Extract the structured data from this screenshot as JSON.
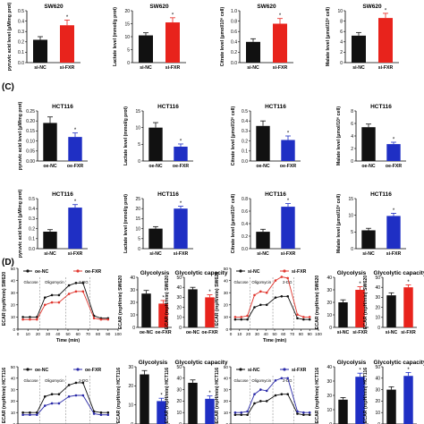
{
  "figure": {
    "panel_labels": [
      "(C)",
      "(D)"
    ]
  },
  "colors": {
    "nc": "#111111",
    "treated_red": "#e8231c",
    "treated_blue": "#1f2fc4",
    "red_line": "#e0362e",
    "blue_line": "#2a2aa8"
  },
  "chart_data": [
    {
      "id": "sw-pyr",
      "type": "bar",
      "title": "SW620",
      "ylabel": "pyruvic acid level (μM/mg prot)",
      "categories": [
        "si-NC",
        "si-FXR"
      ],
      "values": [
        0.22,
        0.36
      ],
      "errors": [
        0.03,
        0.05
      ],
      "ylim": [
        0,
        0.5
      ],
      "yticks": [
        "0.0",
        "0.1",
        "0.2",
        "0.3",
        "0.4",
        "0.5"
      ],
      "colors": [
        "#111111",
        "#e8231c"
      ],
      "sig": "*"
    },
    {
      "id": "sw-lac",
      "type": "bar",
      "title": "SW620",
      "ylabel": "Lactate level (mmol/g prot)",
      "categories": [
        "si-NC",
        "si-FXR"
      ],
      "values": [
        10.5,
        15.5
      ],
      "errors": [
        1,
        1.8
      ],
      "ylim": [
        0,
        20
      ],
      "yticks": [
        "0",
        "5",
        "10",
        "15",
        "20"
      ],
      "colors": [
        "#111111",
        "#e8231c"
      ],
      "sig": "*"
    },
    {
      "id": "sw-cit",
      "type": "bar",
      "title": "SW620",
      "ylabel": "Citrate level (μmol/10⁶ cell)",
      "categories": [
        "si-NC",
        "si-FXR"
      ],
      "values": [
        0.4,
        0.75
      ],
      "errors": [
        0.06,
        0.1
      ],
      "ylim": [
        0,
        1.0
      ],
      "yticks": [
        "0.0",
        "0.2",
        "0.4",
        "0.6",
        "0.8",
        "1.0"
      ],
      "colors": [
        "#111111",
        "#e8231c"
      ],
      "sig": "*"
    },
    {
      "id": "sw-mal",
      "type": "bar",
      "title": "SW620",
      "ylabel": "Malate level (μmol/10⁶ cell)",
      "categories": [
        "si-NC",
        "si-FXR"
      ],
      "values": [
        5.2,
        8.6
      ],
      "errors": [
        0.6,
        0.9
      ],
      "ylim": [
        0,
        10
      ],
      "yticks": [
        "0",
        "2",
        "4",
        "6",
        "8",
        "10"
      ],
      "colors": [
        "#111111",
        "#e8231c"
      ],
      "sig": "*"
    },
    {
      "id": "oe-pyr",
      "type": "bar",
      "title": "HCT116",
      "ylabel": "pyruvic acid level (μM/mg prot)",
      "categories": [
        "oe-NC",
        "oe-FXR"
      ],
      "values": [
        0.19,
        0.12
      ],
      "errors": [
        0.03,
        0.02
      ],
      "ylim": [
        0,
        0.25
      ],
      "yticks": [
        "0.00",
        "0.05",
        "0.10",
        "0.15",
        "0.20",
        "0.25"
      ],
      "colors": [
        "#111111",
        "#1f2fc4"
      ],
      "sig": "*"
    },
    {
      "id": "oe-lac",
      "type": "bar",
      "title": "HCT116",
      "ylabel": "Lactate level (mmol/g prot)",
      "categories": [
        "oe-NC",
        "oe-FXR"
      ],
      "values": [
        10,
        4.3
      ],
      "errors": [
        1.5,
        0.8
      ],
      "ylim": [
        0,
        15
      ],
      "yticks": [
        "0",
        "5",
        "10",
        "15"
      ],
      "colors": [
        "#111111",
        "#1f2fc4"
      ],
      "sig": "*"
    },
    {
      "id": "oe-cit",
      "type": "bar",
      "title": "HCT116",
      "ylabel": "Citrate level (μmol/10⁶ cell)",
      "categories": [
        "oe-NC",
        "oe-FXR"
      ],
      "values": [
        0.35,
        0.21
      ],
      "errors": [
        0.05,
        0.04
      ],
      "ylim": [
        0,
        0.5
      ],
      "yticks": [
        "0.0",
        "0.1",
        "0.2",
        "0.3",
        "0.4",
        "0.5"
      ],
      "colors": [
        "#111111",
        "#1f2fc4"
      ],
      "sig": "*"
    },
    {
      "id": "oe-mal",
      "type": "bar",
      "title": "HCT116",
      "ylabel": "Malate level (μmol/10⁶ cell)",
      "categories": [
        "oe-NC",
        "oe-FXR"
      ],
      "values": [
        5.4,
        2.7
      ],
      "errors": [
        0.5,
        0.3
      ],
      "ylim": [
        0,
        8
      ],
      "yticks": [
        "0",
        "2",
        "4",
        "6",
        "8"
      ],
      "colors": [
        "#111111",
        "#1f2fc4"
      ],
      "sig": "*"
    },
    {
      "id": "si-pyr",
      "type": "bar",
      "title": "HCT116",
      "ylabel": "pyruvic acid level (μM/mg prot)",
      "categories": [
        "si-NC",
        "si-FXR"
      ],
      "values": [
        0.17,
        0.41
      ],
      "errors": [
        0.02,
        0.03
      ],
      "ylim": [
        0,
        0.5
      ],
      "yticks": [
        "0.0",
        "0.1",
        "0.2",
        "0.3",
        "0.4",
        "0.5"
      ],
      "colors": [
        "#111111",
        "#1f2fc4"
      ],
      "sig": "*"
    },
    {
      "id": "si-lac",
      "type": "bar",
      "title": "HCT116",
      "ylabel": "Lactate level (mmol/g prot)",
      "categories": [
        "si-NC",
        "si-FXR"
      ],
      "values": [
        10,
        20
      ],
      "errors": [
        1,
        1.2
      ],
      "ylim": [
        0,
        25
      ],
      "yticks": [
        "0",
        "5",
        "10",
        "15",
        "20",
        "25"
      ],
      "colors": [
        "#111111",
        "#1f2fc4"
      ],
      "sig": "*"
    },
    {
      "id": "si-cit",
      "type": "bar",
      "title": "HCT116",
      "ylabel": "Citrate level (μmol/10⁶ cell)",
      "categories": [
        "si-NC",
        "si-FXR"
      ],
      "values": [
        0.27,
        0.67
      ],
      "errors": [
        0.04,
        0.05
      ],
      "ylim": [
        0,
        0.8
      ],
      "yticks": [
        "0.0",
        "0.2",
        "0.4",
        "0.6",
        "0.8"
      ],
      "colors": [
        "#111111",
        "#1f2fc4"
      ],
      "sig": "*"
    },
    {
      "id": "si-mal",
      "type": "bar",
      "title": "HCT116",
      "ylabel": "Malate level (μmol/10⁶ cell)",
      "categories": [
        "si-NC",
        "si-FXR"
      ],
      "values": [
        5.5,
        9.8
      ],
      "errors": [
        0.6,
        0.8
      ],
      "ylim": [
        0,
        15
      ],
      "yticks": [
        "0",
        "5",
        "10",
        "15"
      ],
      "colors": [
        "#111111",
        "#1f2fc4"
      ],
      "sig": "*"
    },
    {
      "id": "d1-ecar",
      "type": "line",
      "title": "",
      "ylabel": "ECAR (mpH/min) SW620",
      "xlabel": "Time (min)",
      "xlim": [
        0,
        100
      ],
      "ylim": [
        0,
        50
      ],
      "xticks": [
        "0",
        "10",
        "20",
        "30",
        "40",
        "50",
        "60",
        "70",
        "80",
        "90",
        "100"
      ],
      "yticks": [
        "0",
        "10",
        "20",
        "30",
        "40",
        "50"
      ],
      "injections": {
        "labels": [
          "Glucose",
          "Oligomycin",
          "2-DG"
        ],
        "x": [
          22,
          48,
          72
        ]
      },
      "x": [
        5,
        12,
        19,
        27,
        34,
        41,
        51,
        58,
        65,
        76,
        83,
        90
      ],
      "series": [
        {
          "name": "oe-NC",
          "color": "#111111",
          "marker": "circle",
          "values": [
            10,
            10,
            10,
            26,
            28,
            28,
            36,
            38,
            38,
            11,
            9,
            9
          ]
        },
        {
          "name": "oe-FXR",
          "color": "#e0362e",
          "marker": "circle",
          "values": [
            8,
            8,
            8,
            20,
            22,
            22,
            29,
            31,
            31,
            9,
            8,
            8
          ]
        }
      ]
    },
    {
      "id": "d1-glyco",
      "type": "bar",
      "title": "Glycolysis",
      "ylabel": "ECAR (mpH/min) SW620",
      "categories": [
        "oe-NC",
        "oe-FXR"
      ],
      "values": [
        27,
        19
      ],
      "errors": [
        2.5,
        2.5
      ],
      "ylim": [
        0,
        40
      ],
      "yticks": [
        "0",
        "10",
        "20",
        "30",
        "40"
      ],
      "colors": [
        "#111111",
        "#e8231c"
      ],
      "sig": "*"
    },
    {
      "id": "d1-cap",
      "type": "bar",
      "title": "Glycolytic capacity",
      "ylabel": "ECAR (mpH/min) SW620",
      "categories": [
        "oe-NC",
        "oe-FXR"
      ],
      "values": [
        38,
        30
      ],
      "errors": [
        2,
        2.5
      ],
      "ylim": [
        0,
        50
      ],
      "yticks": [
        "0",
        "10",
        "20",
        "30",
        "40",
        "50"
      ],
      "colors": [
        "#111111",
        "#e8231c"
      ],
      "sig": "*"
    },
    {
      "id": "d2-ecar",
      "type": "line",
      "title": "",
      "ylabel": "ECAR (mpH/min) SW620",
      "xlabel": "Time (min)",
      "xlim": [
        0,
        100
      ],
      "ylim": [
        0,
        50
      ],
      "xticks": [
        "0",
        "10",
        "20",
        "30",
        "40",
        "50",
        "60",
        "70",
        "80",
        "90",
        "100"
      ],
      "yticks": [
        "0",
        "10",
        "20",
        "30",
        "40",
        "50"
      ],
      "injections": {
        "labels": [
          "Glucose",
          "Oligomycin",
          "2-DG"
        ],
        "x": [
          22,
          48,
          72
        ]
      },
      "x": [
        5,
        12,
        19,
        27,
        34,
        41,
        51,
        58,
        65,
        76,
        83,
        90
      ],
      "series": [
        {
          "name": "si-NC",
          "color": "#111111",
          "marker": "circle",
          "values": [
            8,
            8,
            8,
            18,
            20,
            20,
            26,
            27,
            27,
            9,
            8,
            8
          ]
        },
        {
          "name": "si-FXR",
          "color": "#e0362e",
          "marker": "circle",
          "values": [
            10,
            10,
            11,
            28,
            31,
            30,
            40,
            43,
            42,
            12,
            10,
            10
          ]
        }
      ]
    },
    {
      "id": "d2-glyco",
      "type": "bar",
      "title": "Glycolysis",
      "ylabel": "ECAR (mpH/min) SW620",
      "categories": [
        "si-NC",
        "si-FXR"
      ],
      "values": [
        20,
        30
      ],
      "errors": [
        2,
        2.5
      ],
      "ylim": [
        0,
        40
      ],
      "yticks": [
        "0",
        "10",
        "20",
        "30",
        "40"
      ],
      "colors": [
        "#111111",
        "#e8231c"
      ],
      "sig": "*"
    },
    {
      "id": "d2-cap",
      "type": "bar",
      "title": "Glycolytic capacity",
      "ylabel": "ECAR (mpH/min) SW620",
      "categories": [
        "si-NC",
        "si-FXR"
      ],
      "values": [
        32,
        40
      ],
      "errors": [
        2.5,
        2.5
      ],
      "ylim": [
        0,
        50
      ],
      "yticks": [
        "0",
        "10",
        "20",
        "30",
        "40",
        "50"
      ],
      "colors": [
        "#111111",
        "#e8231c"
      ],
      "sig": "*"
    },
    {
      "id": "d3-ecar",
      "type": "line",
      "title": "",
      "ylabel": "ECAR (mpH/min) HCT116",
      "xlabel": "",
      "xlim": [
        0,
        100
      ],
      "ylim": [
        0,
        50
      ],
      "xticks": [],
      "yticks": [
        "0",
        "10",
        "20",
        "30",
        "40",
        "50"
      ],
      "injections": {
        "labels": [
          "Glucose",
          "Oligomycin",
          "2-DG"
        ],
        "x": [
          22,
          48,
          72
        ]
      },
      "x": [
        5,
        12,
        19,
        27,
        34,
        41,
        51,
        58,
        65,
        76,
        83,
        90
      ],
      "series": [
        {
          "name": "oe-NC",
          "color": "#111111",
          "marker": "circle",
          "values": [
            10,
            10,
            10,
            24,
            26,
            26,
            34,
            36,
            36,
            11,
            10,
            10
          ]
        },
        {
          "name": "oe-FXR",
          "color": "#2a2aa8",
          "marker": "circle",
          "values": [
            8,
            8,
            8,
            16,
            18,
            18,
            24,
            25,
            25,
            9,
            8,
            8
          ]
        }
      ]
    },
    {
      "id": "d3-glyco",
      "type": "bar",
      "title": "Glycolysis",
      "ylabel": "ECAR (mpH/min) HCT116",
      "categories": [
        "oe-NC",
        "oe-FXR"
      ],
      "values": [
        26,
        12
      ],
      "errors": [
        2,
        1.5
      ],
      "ylim": [
        0,
        30
      ],
      "yticks": [
        "0",
        "10",
        "20",
        "30"
      ],
      "colors": [
        "#111111",
        "#1f2fc4"
      ],
      "sig": "*"
    },
    {
      "id": "d3-cap",
      "type": "bar",
      "title": "Glycolytic capacity",
      "ylabel": "ECAR (mpH/min) HCT116",
      "categories": [
        "oe-NC",
        "oe-FXR"
      ],
      "values": [
        36,
        22
      ],
      "errors": [
        2.5,
        2.5
      ],
      "ylim": [
        0,
        50
      ],
      "yticks": [
        "0",
        "10",
        "20",
        "30",
        "40",
        "50"
      ],
      "colors": [
        "#111111",
        "#1f2fc4"
      ],
      "sig": "*"
    },
    {
      "id": "d4-ecar",
      "type": "line",
      "title": "",
      "ylabel": "ECAR (mpH/min) HCT116",
      "xlabel": "",
      "xlim": [
        0,
        100
      ],
      "ylim": [
        0,
        50
      ],
      "xticks": [],
      "yticks": [
        "0",
        "10",
        "20",
        "30",
        "40",
        "50"
      ],
      "injections": {
        "labels": [
          "Glucose",
          "Oligomycin",
          "2-DG"
        ],
        "x": [
          22,
          48,
          72
        ]
      },
      "x": [
        5,
        12,
        19,
        27,
        34,
        41,
        51,
        58,
        65,
        76,
        83,
        90
      ],
      "series": [
        {
          "name": "si-NC",
          "color": "#111111",
          "marker": "circle",
          "values": [
            8,
            8,
            8,
            18,
            20,
            20,
            25,
            26,
            26,
            9,
            8,
            8
          ]
        },
        {
          "name": "si-FXR",
          "color": "#2a2aa8",
          "marker": "circle",
          "values": [
            10,
            10,
            11,
            26,
            30,
            29,
            38,
            40,
            40,
            11,
            10,
            10
          ]
        }
      ]
    },
    {
      "id": "d4-glyco",
      "type": "bar",
      "title": "Glycolysis",
      "ylabel": "ECAR (mpH/min) HCT116",
      "categories": [
        "si-NC",
        "si-FXR"
      ],
      "values": [
        17,
        33
      ],
      "errors": [
        1.5,
        2.5
      ],
      "ylim": [
        0,
        40
      ],
      "yticks": [
        "0",
        "10",
        "20",
        "30",
        "40"
      ],
      "colors": [
        "#111111",
        "#1f2fc4"
      ],
      "sig": "*"
    },
    {
      "id": "d4-cap",
      "type": "bar",
      "title": "Glycolytic capacity",
      "ylabel": "ECAR (mpH/min) HCT116",
      "categories": [
        "si-NC",
        "si-FXR"
      ],
      "values": [
        30,
        42
      ],
      "errors": [
        2.5,
        3
      ],
      "ylim": [
        0,
        50
      ],
      "yticks": [
        "0",
        "10",
        "20",
        "30",
        "40",
        "50"
      ],
      "colors": [
        "#111111",
        "#1f2fc4"
      ],
      "sig": "*"
    }
  ]
}
